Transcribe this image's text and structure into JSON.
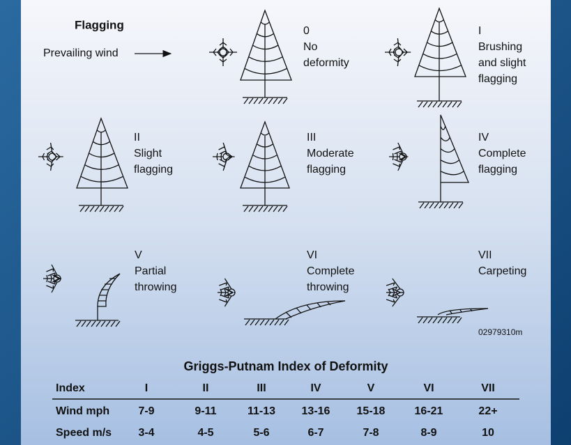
{
  "header": {
    "title": "Flagging",
    "wind_label": "Prevailing wind"
  },
  "stages": [
    {
      "numeral": "0",
      "lines": [
        "No",
        "deformity"
      ]
    },
    {
      "numeral": "I",
      "lines": [
        "Brushing",
        "and slight",
        "flagging"
      ]
    },
    {
      "numeral": "II",
      "lines": [
        "Slight",
        "flagging"
      ]
    },
    {
      "numeral": "III",
      "lines": [
        "Moderate",
        "flagging"
      ]
    },
    {
      "numeral": "IV",
      "lines": [
        "Complete",
        "flagging"
      ]
    },
    {
      "numeral": "V",
      "lines": [
        "Partial",
        "throwing"
      ]
    },
    {
      "numeral": "VI",
      "lines": [
        "Complete",
        "throwing"
      ]
    },
    {
      "numeral": "VII",
      "lines": [
        "Carpeting"
      ]
    }
  ],
  "figure_code": "02979310m",
  "table": {
    "title": "Griggs-Putnam Index of Deformity",
    "header": [
      "Index",
      "I",
      "II",
      "III",
      "IV",
      "V",
      "VI",
      "VII"
    ],
    "rows": [
      [
        "Wind mph",
        "7-9",
        "9-11",
        "11-13",
        "13-16",
        "15-18",
        "16-21",
        "22+"
      ],
      [
        "Speed m/s",
        "3-4",
        "4-5",
        "5-6",
        "6-7",
        "7-8",
        "8-9",
        "10"
      ]
    ]
  }
}
